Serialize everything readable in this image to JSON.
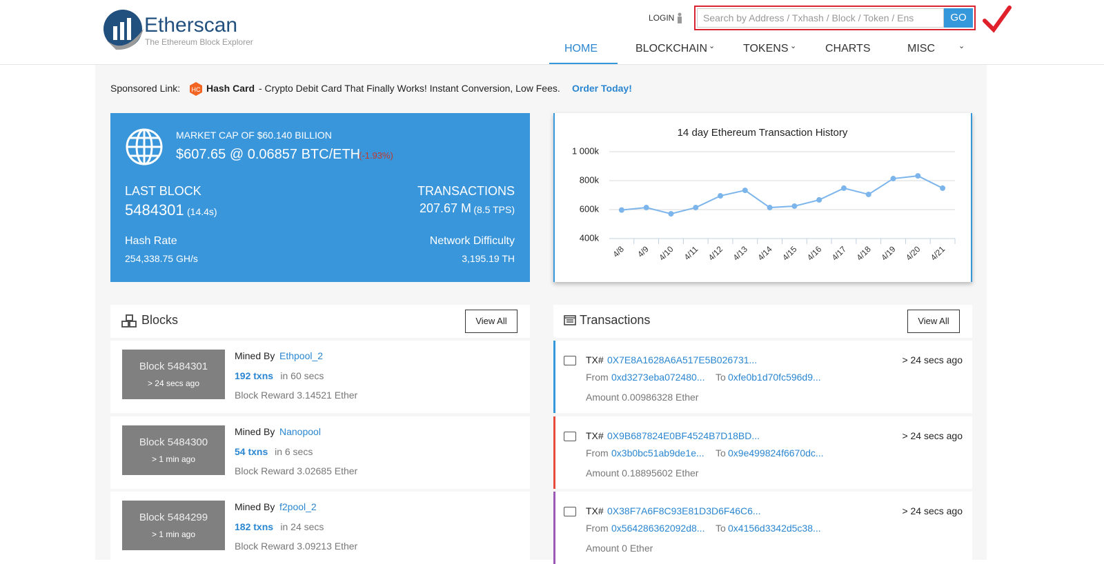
{
  "header": {
    "logo_title": "Etherscan",
    "logo_subtitle": "The Ethereum Block Explorer",
    "login": "LOGIN",
    "search_placeholder": "Search by Address / Txhash / Block / Token / Ens",
    "search_button": "GO",
    "nav": [
      "HOME",
      "BLOCKCHAIN",
      "TOKENS",
      "CHARTS",
      "MISC"
    ]
  },
  "sponsored": {
    "label": "Sponsored Link:",
    "name": "Hash Card",
    "text": "- Crypto Debit Card That Finally Works! Instant Conversion, Low Fees.",
    "cta": "Order Today!"
  },
  "stats": {
    "market_cap": "MARKET CAP OF $60.140 BILLION",
    "price": "$607.65 @ 0.06857 BTC/ETH",
    "price_change": "(-1.93%)",
    "last_block_label": "LAST BLOCK",
    "last_block": "5484301",
    "last_block_time": "(14.4s)",
    "transactions_label": "TRANSACTIONS",
    "transactions": "207.67 M",
    "tps": "(8.5 TPS)",
    "hash_rate_label": "Hash Rate",
    "hash_rate": "254,338.75 GH/s",
    "difficulty_label": "Network Difficulty",
    "difficulty": "3,195.19 TH"
  },
  "chart_data": {
    "type": "line",
    "title": "14 day Ethereum Transaction History",
    "categories": [
      "4/8",
      "4/9",
      "4/10",
      "4/11",
      "4/12",
      "4/13",
      "4/14",
      "4/15",
      "4/16",
      "4/17",
      "4/18",
      "4/19",
      "4/20",
      "4/21"
    ],
    "values": [
      597000,
      614000,
      571000,
      614000,
      695000,
      733000,
      614000,
      624000,
      667000,
      748000,
      705000,
      814000,
      833000,
      748000
    ],
    "color": "#7cb5ec",
    "ylim": [
      400000,
      1000000
    ],
    "yticks": [
      {
        "value": 400000,
        "label": "400k"
      },
      {
        "value": 600000,
        "label": "600k"
      },
      {
        "value": 800000,
        "label": "800k"
      },
      {
        "value": 1000000,
        "label": "1 000k"
      }
    ],
    "grid": true
  },
  "blocks": {
    "title": "Blocks",
    "view_all": "View All",
    "items": [
      {
        "block": "Block 5484301",
        "age": "> 24 secs ago",
        "mined_by_label": "Mined By",
        "miner": "Ethpool_2",
        "txns": "192 txns",
        "duration": "in 60 secs",
        "reward": "Block Reward 3.14521 Ether"
      },
      {
        "block": "Block 5484300",
        "age": "> 1 min ago",
        "mined_by_label": "Mined By",
        "miner": "Nanopool",
        "txns": "54 txns",
        "duration": "in 6 secs",
        "reward": "Block Reward 3.02685 Ether"
      },
      {
        "block": "Block 5484299",
        "age": "> 1 min ago",
        "mined_by_label": "Mined By",
        "miner": "f2pool_2",
        "txns": "182 txns",
        "duration": "in 24 secs",
        "reward": "Block Reward 3.09213 Ether"
      }
    ]
  },
  "transactions": {
    "title": "Transactions",
    "view_all": "View All",
    "items": [
      {
        "tx_label": "TX#",
        "hash": "0X7E8A1628A6A517E5B026731...",
        "age": "> 24 secs ago",
        "from_label": "From",
        "from": "0xd3273eba072480...",
        "to_label": "To",
        "to": "0xfe0b1d70fc596d9...",
        "amount": "Amount 0.00986328 Ether"
      },
      {
        "tx_label": "TX#",
        "hash": "0X9B687824E0BF4524B7D18BD...",
        "age": "> 24 secs ago",
        "from_label": "From",
        "from": "0x3b0bc51ab9de1e...",
        "to_label": "To",
        "to": "0x9e499824f6670dc...",
        "amount": "Amount 0.18895602 Ether"
      },
      {
        "tx_label": "TX#",
        "hash": "0X38F7A6F8C93E81D3D6F46C6...",
        "age": "> 24 secs ago",
        "from_label": "From",
        "from": "0x564286362092d8...",
        "to_label": "To",
        "to": "0x4156d3342d5c38...",
        "amount": "Amount 0 Ether"
      }
    ]
  }
}
